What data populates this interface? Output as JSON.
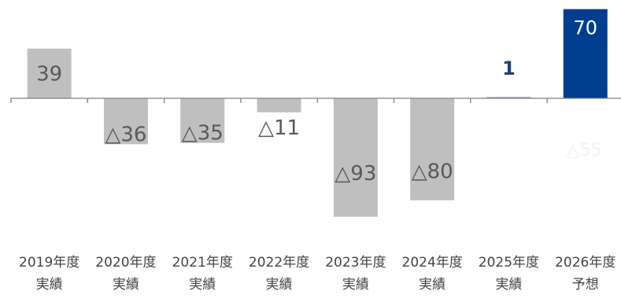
{
  "chart_data": {
    "type": "bar",
    "title": "",
    "xlabel": "",
    "ylabel": "",
    "categories": [
      [
        "2019年度",
        "実績"
      ],
      [
        "2020年度",
        "実績"
      ],
      [
        "2021年度",
        "実績"
      ],
      [
        "2022年度",
        "実績"
      ],
      [
        "2023年度",
        "実績"
      ],
      [
        "2024年度",
        "実績"
      ],
      [
        "2025年度",
        "実績"
      ],
      [
        "2026年度",
        "予想"
      ]
    ],
    "values": [
      39,
      -36,
      -35,
      -11,
      -93,
      -80,
      1,
      70
    ],
    "labels": [
      "39",
      "△36",
      "△35",
      "△11",
      "△93",
      "△80",
      "1",
      "70"
    ],
    "extra_text": "△55",
    "colors": {
      "actual": "#bfbfbf",
      "forecast": "#003f8f",
      "latest_label": "#1f3f7a",
      "label": "#595959",
      "axis": "#808080"
    },
    "ylim": [
      -95,
      72
    ]
  }
}
